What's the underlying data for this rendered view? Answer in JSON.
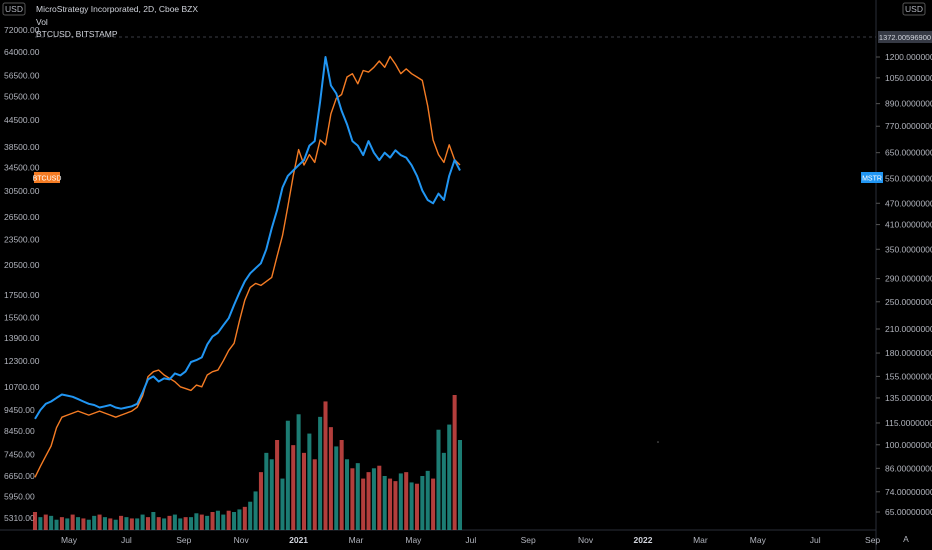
{
  "header": {
    "main_title": "MicroStrategy Incorporated, 2D, Cboe BZX",
    "vol_label": "Vol",
    "compare_label": "BTCUSD, BITSTAMP"
  },
  "left_axis": {
    "currency": "USD"
  },
  "right_axis": {
    "currency": "USD"
  },
  "price_tags": {
    "btc": "BTCUSD",
    "mstr": "MSTR",
    "crosshair_value": "1372.00596900"
  },
  "colors": {
    "btc": "#f57c24",
    "mstr": "#2196f3",
    "volume_up": "#26a69a",
    "volume_down": "#ef5350",
    "background": "#000000",
    "axis_text": "#b2b5be"
  },
  "chart_data": {
    "type": "line",
    "scale": "log",
    "grid": false,
    "x_ticks": [
      "May",
      "Jul",
      "Sep",
      "Nov",
      "2021",
      "Mar",
      "May",
      "Jul",
      "Sep",
      "Nov",
      "2022",
      "Mar",
      "May",
      "Jul",
      "Sep"
    ],
    "left_ticks": [
      "72000.00",
      "64000.00",
      "56500.00",
      "50500.00",
      "44500.00",
      "38500.00",
      "34500.00",
      "30500.00",
      "26500.00",
      "23500.00",
      "20500.00",
      "17500.00",
      "15500.00",
      "13900.00",
      "12300.00",
      "10700.00",
      "9450.00",
      "8450.00",
      "7450.00",
      "6650.00",
      "5950.00",
      "5310.00"
    ],
    "right_ticks": [
      "1200.00000000",
      "1050.00000000",
      "890.00000000",
      "770.00000000",
      "650.00000000",
      "550.00000000",
      "470.00000000",
      "410.00000000",
      "350.00000000",
      "290.00000000",
      "250.00000000",
      "210.00000000",
      "180.00000000",
      "155.00000000",
      "135.00000000",
      "115.00000000",
      "100.00000000",
      "86.00000000",
      "74.00000000",
      "65.00000000"
    ],
    "series": [
      {
        "name": "BTCUSD",
        "axis": "left",
        "values": [
          6600,
          7000,
          7400,
          7800,
          8600,
          9100,
          9200,
          9300,
          9400,
          9300,
          9200,
          9300,
          9400,
          9300,
          9200,
          9100,
          9200,
          9300,
          9400,
          9600,
          10200,
          11300,
          11600,
          11700,
          11400,
          11200,
          11000,
          10700,
          10600,
          10500,
          10800,
          10700,
          11400,
          11600,
          11700,
          12300,
          13000,
          13500,
          15200,
          17000,
          18200,
          18600,
          18400,
          18800,
          19200,
          21500,
          24000,
          28000,
          33000,
          38000,
          35000,
          37000,
          35500,
          40000,
          39000,
          46000,
          50000,
          51000,
          56000,
          57000,
          54000,
          58000,
          57500,
          59000,
          61000,
          59000,
          62500,
          60000,
          57000,
          58500,
          57000,
          56000,
          55000,
          48000,
          40000,
          37000,
          35500,
          39000,
          36000,
          35000
        ],
        "vdates": "bi-daily"
      },
      {
        "name": "MSTR",
        "axis": "right",
        "values": [
          118,
          125,
          130,
          132,
          135,
          138,
          137,
          136,
          134,
          132,
          130,
          129,
          127,
          128,
          129,
          127,
          126,
          127,
          128,
          130,
          140,
          152,
          155,
          150,
          153,
          152,
          158,
          156,
          160,
          170,
          172,
          175,
          190,
          200,
          205,
          215,
          225,
          245,
          265,
          285,
          300,
          310,
          320,
          350,
          400,
          450,
          520,
          560,
          580,
          600,
          620,
          680,
          700,
          900,
          1200,
          1000,
          950,
          850,
          780,
          700,
          680,
          640,
          700,
          650,
          620,
          650,
          630,
          660,
          640,
          630,
          600,
          560,
          510,
          480,
          470,
          500,
          480,
          560,
          620,
          580
        ],
        "vdates": "bi-daily"
      }
    ],
    "volume": [
      14,
      10,
      12,
      11,
      8,
      10,
      9,
      12,
      10,
      9,
      8,
      11,
      12,
      10,
      9,
      8,
      11,
      10,
      9,
      9,
      12,
      10,
      14,
      10,
      9,
      11,
      12,
      9,
      10,
      10,
      13,
      12,
      11,
      14,
      15,
      12,
      15,
      14,
      16,
      18,
      22,
      30,
      45,
      60,
      55,
      70,
      40,
      85,
      66,
      90,
      60,
      75,
      55,
      88,
      100,
      80,
      65,
      70,
      55,
      48,
      52,
      40,
      45,
      48,
      50,
      42,
      40,
      38,
      44,
      45,
      37,
      36,
      42,
      46,
      40,
      78,
      60,
      82,
      105,
      70
    ],
    "volume_colors": [
      "d",
      "u",
      "d",
      "u",
      "u",
      "d",
      "u",
      "d",
      "u",
      "d",
      "u",
      "u",
      "d",
      "u",
      "d",
      "u",
      "d",
      "u",
      "d",
      "u",
      "u",
      "d",
      "u",
      "d",
      "u",
      "d",
      "u",
      "u",
      "d",
      "u",
      "u",
      "d",
      "u",
      "d",
      "u",
      "u",
      "d",
      "u",
      "u",
      "d",
      "u",
      "u",
      "d",
      "u",
      "u",
      "d",
      "u",
      "u",
      "d",
      "u",
      "d",
      "u",
      "d",
      "u",
      "d",
      "d",
      "u",
      "d",
      "u",
      "d",
      "u",
      "d",
      "d",
      "u",
      "d",
      "u",
      "d",
      "d",
      "u",
      "d",
      "u",
      "d",
      "u",
      "u",
      "d",
      "u",
      "u",
      "u",
      "d",
      "u"
    ]
  }
}
